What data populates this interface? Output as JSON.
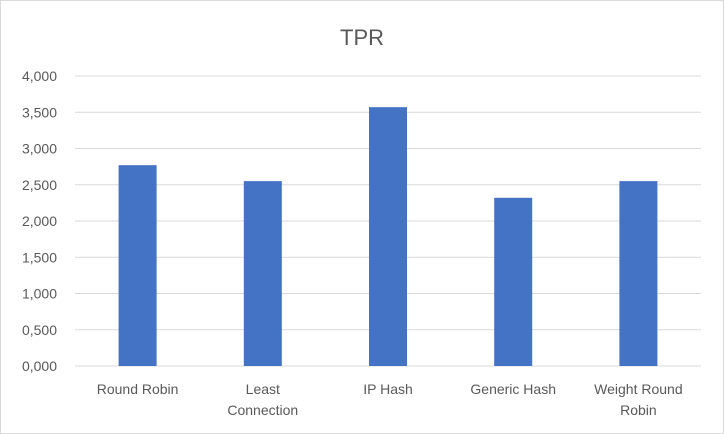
{
  "chart_data": {
    "type": "bar",
    "title": "TPR",
    "categories": [
      [
        "Round Robin"
      ],
      [
        "Least",
        "Connection"
      ],
      [
        "IP Hash"
      ],
      [
        "Generic Hash"
      ],
      [
        "Weight Round",
        "Robin"
      ]
    ],
    "values": [
      2.77,
      2.55,
      3.57,
      2.32,
      2.55
    ],
    "ylim": [
      0,
      4
    ],
    "yticks": [
      {
        "value": 0,
        "label": "0,000"
      },
      {
        "value": 0.5,
        "label": "0,500"
      },
      {
        "value": 1,
        "label": "1,000"
      },
      {
        "value": 1.5,
        "label": "1,500"
      },
      {
        "value": 2,
        "label": "2,000"
      },
      {
        "value": 2.5,
        "label": "2,500"
      },
      {
        "value": 3,
        "label": "3,000"
      },
      {
        "value": 3.5,
        "label": "3,500"
      },
      {
        "value": 4,
        "label": "4,000"
      }
    ],
    "grid": true,
    "bar_color": "#4472C4",
    "grid_color": "#d9d9d9",
    "legend": "none"
  }
}
